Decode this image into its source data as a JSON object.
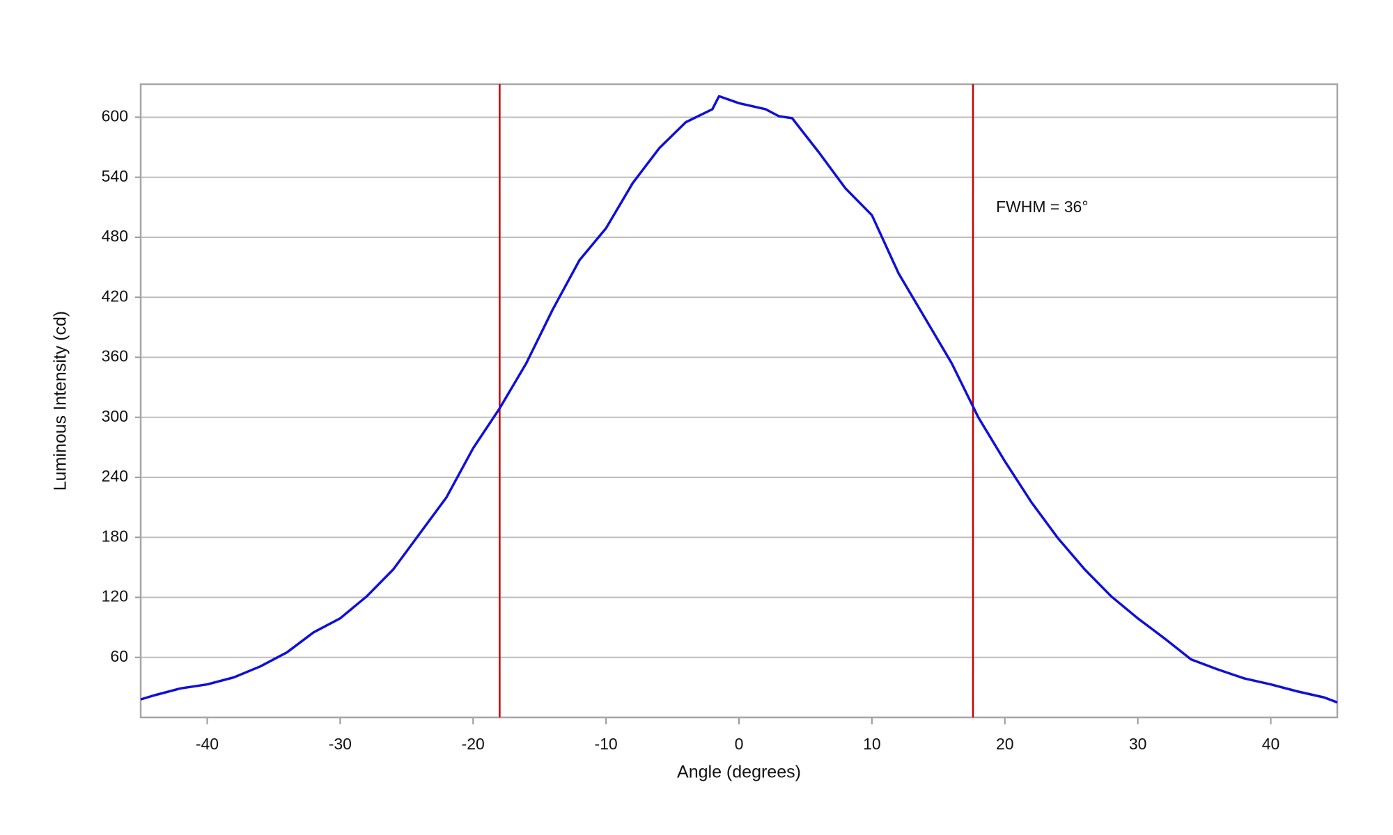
{
  "chart_data": {
    "type": "line",
    "x_label": "Angle (degrees)",
    "y_label": "Luminous Intensity (cd)",
    "annotation": "FWHM = 36°",
    "x": [
      -45,
      -44,
      -42,
      -40,
      -38,
      -36,
      -34,
      -32,
      -30,
      -28,
      -26,
      -24,
      -22,
      -20,
      -18,
      -16,
      -14,
      -12,
      -10,
      -8,
      -6,
      -4,
      -2,
      -1.5,
      0,
      2,
      3,
      4,
      6,
      8,
      10,
      12,
      14,
      16,
      18,
      20,
      22,
      24,
      26,
      28,
      30,
      32,
      34,
      36,
      38,
      40,
      42,
      44,
      45
    ],
    "series": [
      {
        "color": "#1010d8",
        "values": [
          18,
          22,
          29,
          33,
          40,
          51,
          65,
          85,
          99,
          121,
          148,
          184,
          220,
          269,
          309,
          354,
          408,
          457,
          489,
          534,
          569,
          595,
          608,
          621,
          614,
          608,
          601,
          599,
          565,
          529,
          502,
          444,
          399,
          354,
          300,
          256,
          215,
          179,
          148,
          121,
          99,
          79,
          58,
          48,
          39,
          33,
          26,
          20,
          15
        ]
      }
    ],
    "vlines": {
      "color": "#cc0000",
      "values": [
        -18,
        17.6
      ]
    },
    "xlim": [
      -45,
      45
    ],
    "xticks": [
      -40,
      -30,
      -20,
      -10,
      0,
      10,
      20,
      30,
      40
    ],
    "ylim": [
      0,
      633
    ],
    "yticks": [
      60,
      120,
      180,
      240,
      300,
      360,
      420,
      480,
      540,
      600
    ],
    "grid": true
  }
}
